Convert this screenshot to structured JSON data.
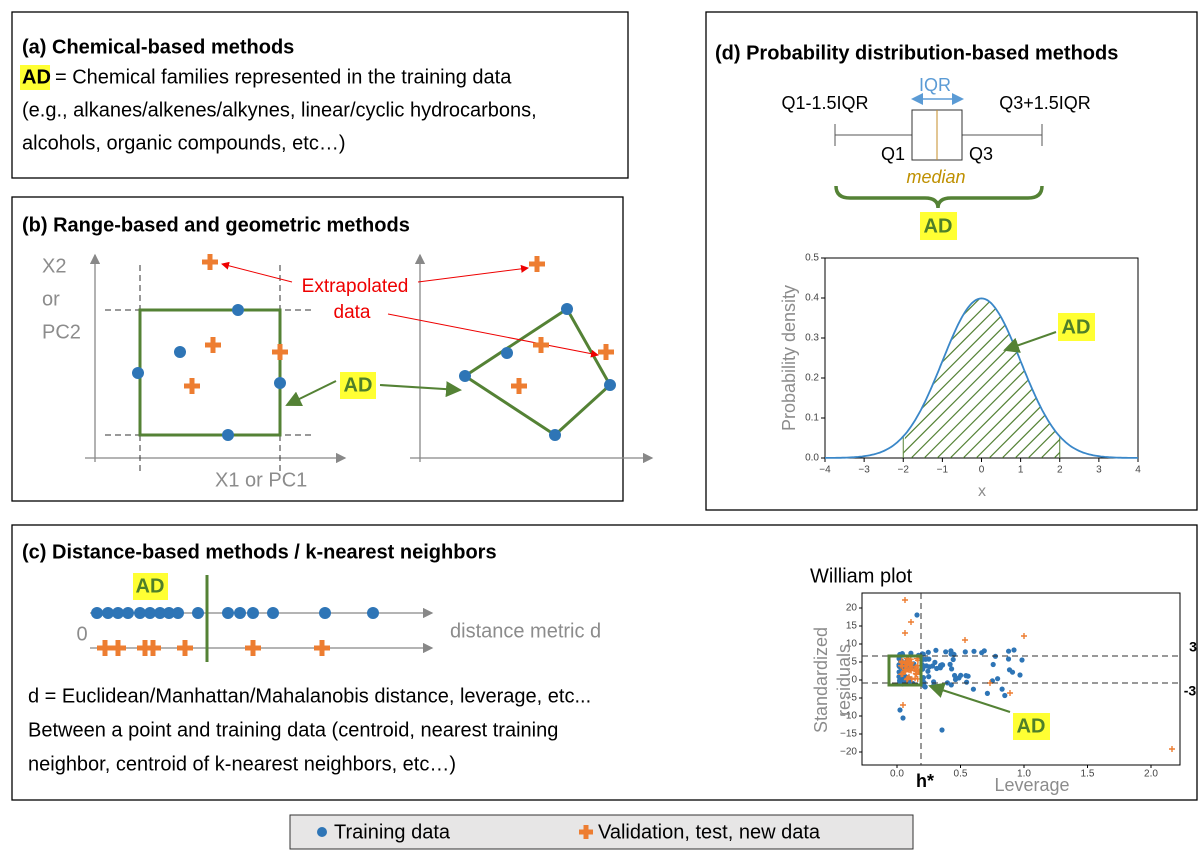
{
  "panel_a": {
    "title": "(a) Chemical-based methods",
    "ad": "AD",
    "lines": [
      "= Chemical families represented in the training data",
      "(e.g., alkanes/alkenes/alkynes, linear/cyclic hydrocarbons,",
      "alcohols, organic compounds, etc…)"
    ]
  },
  "panel_b": {
    "title": "(b) Range-based and geometric methods",
    "y_axis_label": [
      "X2",
      "or",
      "PC2"
    ],
    "x_axis_label": "X1 or PC1",
    "annotation": [
      "Extrapolated",
      "data"
    ],
    "ad": "AD"
  },
  "panel_c": {
    "title": "(c) Distance-based methods / k-nearest neighbors",
    "ad": "AD",
    "origin": "0",
    "axis_label": "distance metric d",
    "lines": [
      "d = Euclidean/Manhattan/Mahalanobis distance, leverage, etc...",
      "Between a point and training data (centroid, nearest training",
      "neighbor, centroid of k-nearest neighbors, etc…)"
    ]
  },
  "panel_d": {
    "title": "(d) Probability distribution-based methods",
    "iqr": "IQR",
    "lower_whisker": "Q1-1.5IQR",
    "upper_whisker": "Q3+1.5IQR",
    "q1": "Q1",
    "q3": "Q3",
    "median": "median",
    "ad": "AD",
    "plot": {
      "y_label": "Probability density",
      "x_label": "x",
      "xticks": [
        "−4",
        "−3",
        "−2",
        "−1",
        "0",
        "1",
        "2",
        "3",
        "4"
      ],
      "yticks": [
        "0.0",
        "0.1",
        "0.2",
        "0.3",
        "0.4",
        "0.5"
      ],
      "ad": "AD"
    }
  },
  "william_plot": {
    "title": "William plot",
    "y_label": [
      "Standardized",
      "residuals"
    ],
    "x_label": "Leverage",
    "xticks": [
      "0.0",
      "0.5",
      "1.0",
      "1.5",
      "2.0"
    ],
    "yticks": [
      "20",
      "15",
      "10",
      "5",
      "0",
      "−5",
      "−10",
      "−15",
      "−20"
    ],
    "threshold_h": "h*",
    "upper": "3",
    "lower": "-3",
    "ad": "AD"
  },
  "legend": {
    "training": "Training data",
    "validation": "Validation, test, new data"
  }
}
